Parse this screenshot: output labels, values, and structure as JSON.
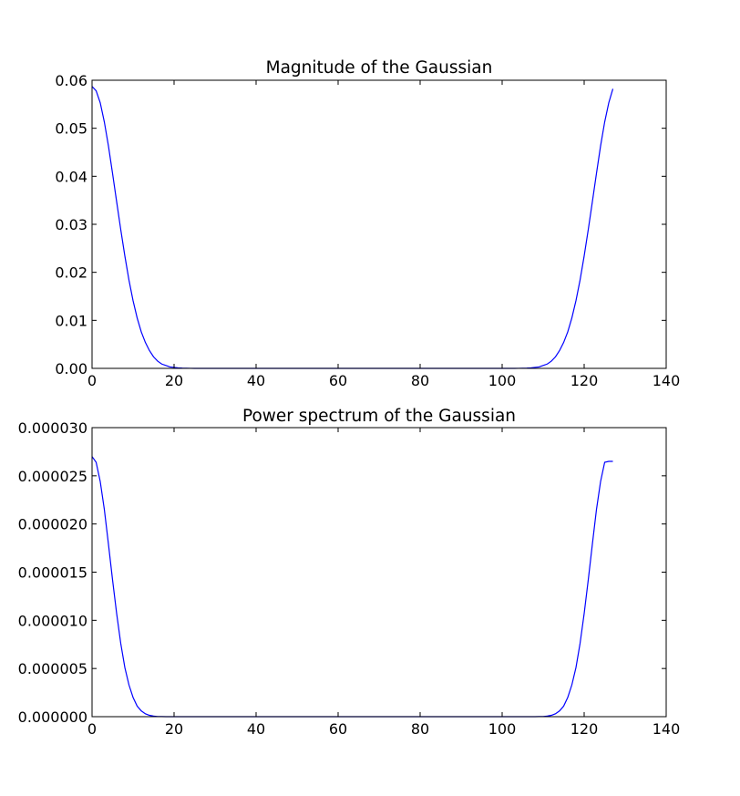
{
  "colors": {
    "line": "#0000ff",
    "axes": "#000000",
    "background": "#ffffff"
  },
  "chart_data": [
    {
      "type": "line",
      "title": "Magnitude of the Gaussian",
      "xlabel": "",
      "ylabel": "",
      "xlim": [
        0,
        140
      ],
      "ylim": [
        0,
        0.06
      ],
      "grid": false,
      "xticks": [
        "0",
        "20",
        "40",
        "60",
        "80",
        "100",
        "120",
        "140"
      ],
      "yticks": [
        "0.00",
        "0.01",
        "0.02",
        "0.03",
        "0.04",
        "0.05",
        "0.06"
      ],
      "series": [
        {
          "x": [
            0,
            1,
            2,
            3,
            4,
            5,
            6,
            7,
            8,
            9,
            10,
            11,
            12,
            13,
            14,
            15,
            16,
            17,
            18,
            19,
            20,
            21,
            22,
            23,
            24,
            25,
            30,
            40,
            50,
            60,
            64,
            70,
            80,
            90,
            100,
            103,
            104,
            105,
            106,
            107,
            108,
            109,
            110,
            111,
            112,
            113,
            114,
            115,
            116,
            117,
            118,
            119,
            120,
            121,
            122,
            123,
            124,
            125,
            126,
            127
          ],
          "y": [
            0.0587,
            0.0578,
            0.0553,
            0.0513,
            0.0463,
            0.0406,
            0.0347,
            0.0289,
            0.0234,
            0.0184,
            0.0141,
            0.0105,
            0.0076,
            0.0054,
            0.0037,
            0.0024,
            0.0015,
            0.0009,
            0.0006,
            0.0003,
            0.0002,
            0.0001,
            5e-05,
            3e-05,
            1e-05,
            5e-06,
            0,
            0,
            0,
            0,
            0,
            0,
            0,
            0,
            0,
            5e-06,
            1e-05,
            3e-05,
            5e-05,
            0.0001,
            0.0002,
            0.0003,
            0.0006,
            0.0009,
            0.0015,
            0.0024,
            0.0037,
            0.0054,
            0.0076,
            0.0105,
            0.0141,
            0.0184,
            0.0234,
            0.0289,
            0.0347,
            0.0406,
            0.0463,
            0.0513,
            0.0553,
            0.0582
          ]
        }
      ]
    },
    {
      "type": "line",
      "title": "Power spectrum of the Gaussian",
      "xlabel": "",
      "ylabel": "",
      "xlim": [
        0,
        140
      ],
      "ylim": [
        0,
        3e-05
      ],
      "grid": false,
      "xticks": [
        "0",
        "20",
        "40",
        "60",
        "80",
        "100",
        "120",
        "140"
      ],
      "yticks": [
        "0.000000",
        "0.000005",
        "0.000010",
        "0.000015",
        "0.000020",
        "0.000025",
        "0.000030"
      ],
      "series": [
        {
          "x": [
            0,
            1,
            2,
            3,
            4,
            5,
            6,
            7,
            8,
            9,
            10,
            11,
            12,
            13,
            14,
            15,
            16,
            17,
            18,
            20,
            30,
            40,
            50,
            60,
            64,
            70,
            80,
            90,
            100,
            108,
            109,
            110,
            111,
            112,
            113,
            114,
            115,
            116,
            117,
            118,
            119,
            120,
            121,
            122,
            123,
            124,
            125,
            126,
            127
          ],
          "y": [
            2.7e-05,
            2.64e-05,
            2.44e-05,
            2.15e-05,
            1.79e-05,
            1.42e-05,
            1.07e-05,
            7.6e-06,
            5.1e-06,
            3.3e-06,
            2e-06,
            1.1e-06,
            6e-07,
            3e-07,
            1.4e-07,
            6e-08,
            2e-08,
            1e-08,
            0,
            0,
            0,
            0,
            0,
            0,
            0,
            0,
            0,
            0,
            0,
            0,
            1e-08,
            2e-08,
            6e-08,
            1.4e-07,
            3e-07,
            6e-07,
            1.1e-06,
            2e-06,
            3.3e-06,
            5.1e-06,
            7.6e-06,
            1.07e-05,
            1.42e-05,
            1.79e-05,
            2.15e-05,
            2.44e-05,
            2.64e-05,
            2.65e-05,
            2.65e-05
          ]
        }
      ]
    }
  ]
}
